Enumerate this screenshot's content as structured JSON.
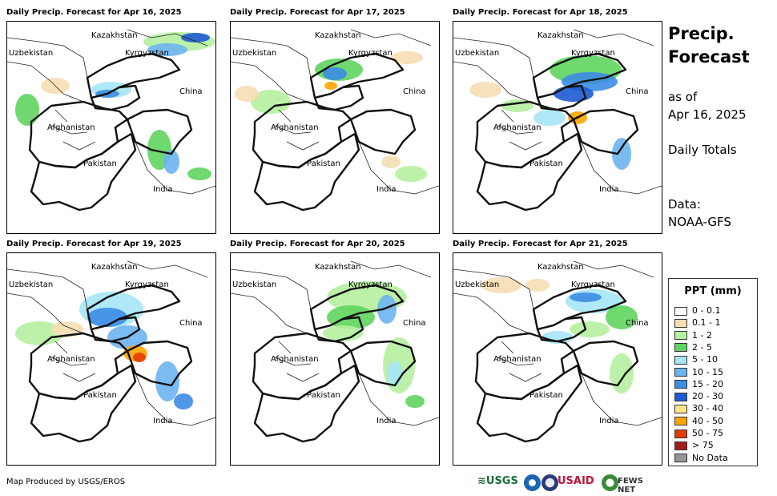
{
  "panels": [
    {
      "title": "Daily Precip. Forecast for Apr 16, 2025"
    },
    {
      "title": "Daily Precip. Forecast for Apr 17, 2025"
    },
    {
      "title": "Daily Precip. Forecast for Apr 18, 2025"
    },
    {
      "title": "Daily Precip. Forecast for Apr 19, 2025"
    },
    {
      "title": "Daily Precip. Forecast for Apr 20, 2025"
    },
    {
      "title": "Daily Precip. Forecast for Apr 21, 2025"
    }
  ],
  "map_labels": {
    "kazakhstan": "Kazakhstan",
    "uzbekistan": "Uzbekistan",
    "kyrgyzstan": "Kyrgyzstan",
    "china": "China",
    "afghanistan": "Afghanistan",
    "pakistan": "Pakistan",
    "india": "India"
  },
  "sidebar": {
    "title_line1": "Precip.",
    "title_line2": "Forecast",
    "as_of_label": "as of",
    "as_of_date": "Apr 16, 2025",
    "totals": "Daily Totals",
    "data_label": "Data:",
    "data_source": "NOAA-GFS"
  },
  "legend": {
    "title": "PPT (mm)",
    "items": [
      {
        "label": "0 - 0.1",
        "color": "#ffffff"
      },
      {
        "label": "0.1 - 1",
        "color": "#f5deb3"
      },
      {
        "label": "1 - 2",
        "color": "#b6f0a0"
      },
      {
        "label": "2 - 5",
        "color": "#5fd45f"
      },
      {
        "label": "5 - 10",
        "color": "#a6e6f5"
      },
      {
        "label": "10 - 15",
        "color": "#6eb4f0"
      },
      {
        "label": "15 - 20",
        "color": "#3c8ce6"
      },
      {
        "label": "20 - 30",
        "color": "#1e5ad2"
      },
      {
        "label": "30 - 40",
        "color": "#ffe68c"
      },
      {
        "label": "40 - 50",
        "color": "#ffa500"
      },
      {
        "label": "50 - 75",
        "color": "#e63c00"
      },
      {
        "label": "> 75",
        "color": "#a01e1e"
      },
      {
        "label": "No Data",
        "color": "#969696"
      }
    ]
  },
  "footer": {
    "credit": "Map Produced by USGS/EROS"
  },
  "logos": {
    "usgs": "≋USGS",
    "usaid": "USAID",
    "fews": "FEWS NET"
  }
}
